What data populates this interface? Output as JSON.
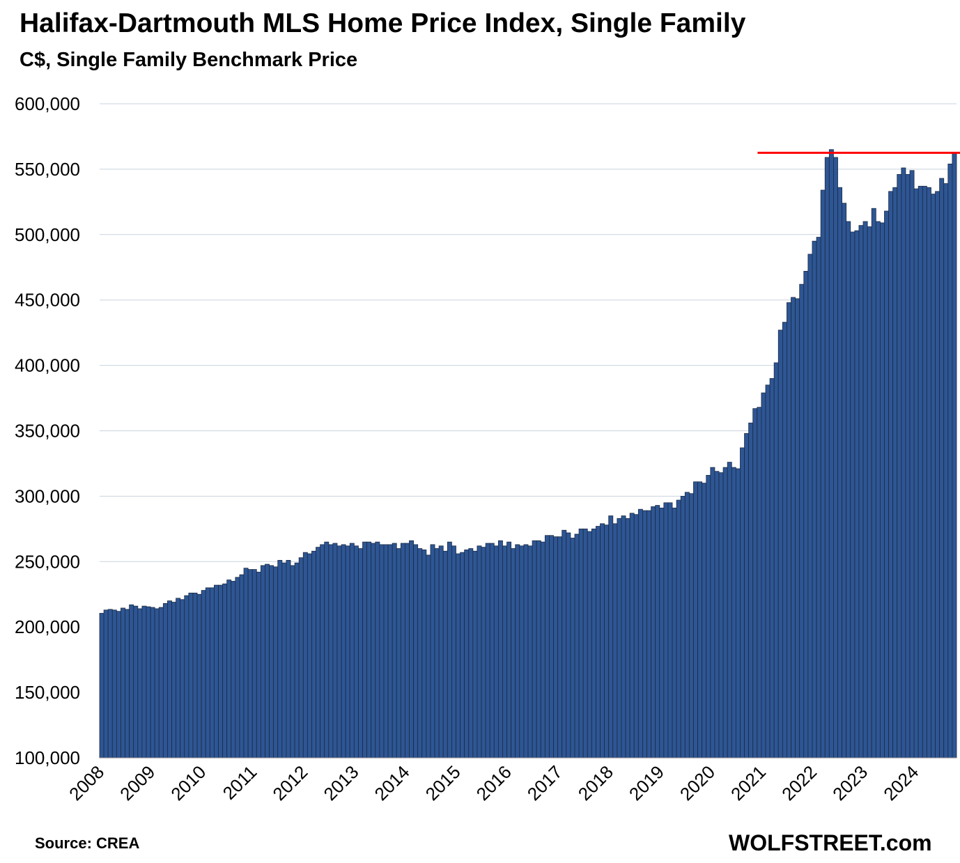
{
  "chart_data": {
    "type": "bar",
    "title": "Halifax-Dartmouth MLS Home Price Index, Single Family",
    "subtitle": "C$, Single Family Benchmark Price",
    "ylim": [
      100000,
      600000
    ],
    "y_ticks": [
      "100,000",
      "150,000",
      "200,000",
      "250,000",
      "300,000",
      "350,000",
      "400,000",
      "450,000",
      "500,000",
      "550,000",
      "600,000"
    ],
    "y_tick_values": [
      100000,
      150000,
      200000,
      250000,
      300000,
      350000,
      400000,
      450000,
      500000,
      550000,
      600000
    ],
    "x_ticks": [
      "2008",
      "2009",
      "2010",
      "2011",
      "2012",
      "2013",
      "2014",
      "2015",
      "2016",
      "2017",
      "2018",
      "2019",
      "2020",
      "2021",
      "2022",
      "2023",
      "2024"
    ],
    "start": "2008-01",
    "frequency": "monthly",
    "values": [
      210500,
      213000,
      213500,
      213000,
      212000,
      214500,
      213500,
      217000,
      216000,
      214000,
      216000,
      215500,
      215000,
      214000,
      215000,
      218000,
      220000,
      219000,
      222000,
      221000,
      224000,
      226000,
      226000,
      225000,
      228000,
      230000,
      230000,
      232000,
      232000,
      233000,
      236000,
      235000,
      238000,
      240000,
      245000,
      244000,
      244000,
      242000,
      247000,
      248000,
      247000,
      246000,
      251000,
      249000,
      251000,
      247000,
      249000,
      253000,
      257000,
      256000,
      258000,
      261000,
      263000,
      265000,
      263000,
      264000,
      262000,
      263000,
      262000,
      264000,
      262000,
      260000,
      265000,
      265000,
      264000,
      265000,
      263000,
      263000,
      263000,
      264000,
      260000,
      264000,
      264000,
      266000,
      263000,
      260000,
      259000,
      255000,
      263000,
      260000,
      262000,
      258000,
      265000,
      262000,
      256000,
      257000,
      259000,
      260000,
      258000,
      262000,
      261000,
      264000,
      264000,
      262000,
      266000,
      262000,
      265000,
      260000,
      263000,
      262000,
      263000,
      262000,
      266000,
      266000,
      265000,
      270000,
      270000,
      269000,
      269000,
      274000,
      272000,
      268000,
      271000,
      275000,
      275000,
      273000,
      275000,
      277000,
      279000,
      278000,
      285000,
      279000,
      283000,
      285000,
      283000,
      287000,
      286000,
      290000,
      289000,
      289000,
      292000,
      293000,
      291000,
      295000,
      295000,
      291000,
      297000,
      300000,
      303000,
      302000,
      311000,
      311000,
      310000,
      316000,
      322000,
      319000,
      318000,
      322000,
      326000,
      322000,
      321000,
      337000,
      348000,
      356000,
      367000,
      368000,
      379000,
      385000,
      390000,
      402000,
      427000,
      433000,
      448000,
      452000,
      451000,
      462000,
      472000,
      485000,
      495000,
      498000,
      534000,
      559000,
      565000,
      559000,
      536000,
      524000,
      510000,
      502000,
      503000,
      507000,
      510000,
      506000,
      520000,
      510000,
      509000,
      518000,
      533000,
      536000,
      546000,
      551000,
      546000,
      549000,
      535000,
      537000,
      537000,
      536000,
      531000,
      533000,
      543000,
      539000,
      554000,
      562000
    ],
    "reference_line": {
      "value": 562500,
      "from": "2021-01",
      "color": "#ff0000"
    },
    "bar_color": "#2e5694",
    "bar_edge_color": "#1a2a44",
    "grid": true,
    "legend": "none"
  },
  "footer": {
    "source": "Source: CREA",
    "brand": "WOLFSTREET.com"
  }
}
